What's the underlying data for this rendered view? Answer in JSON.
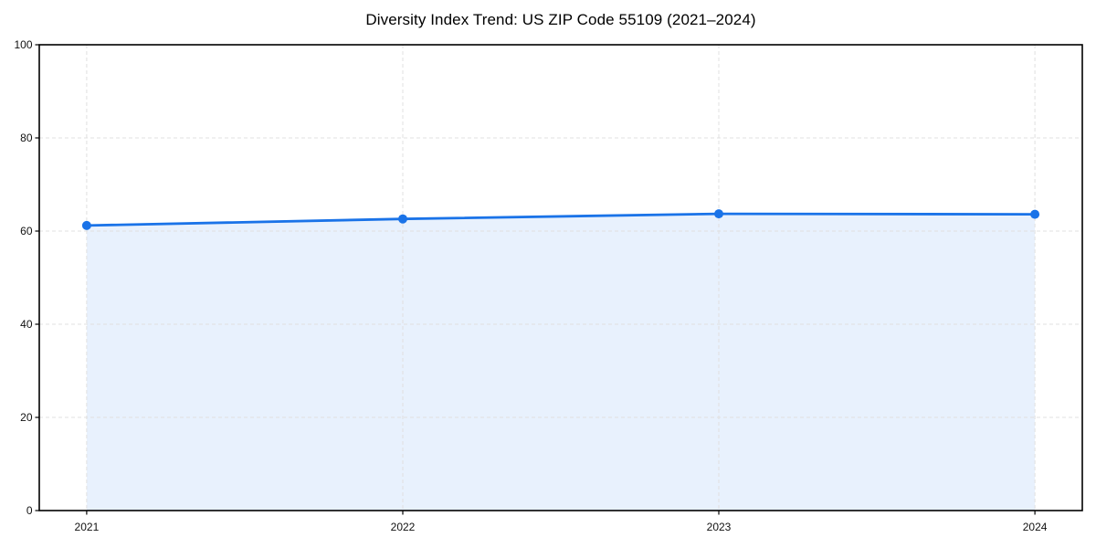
{
  "chart_data": {
    "type": "area",
    "title": "Diversity Index Trend: US ZIP Code 55109 (2021–2024)",
    "categories": [
      "2021",
      "2022",
      "2023",
      "2024"
    ],
    "values": [
      61.2,
      62.6,
      63.7,
      63.6
    ],
    "xlabel": "",
    "ylabel": "",
    "ylim": [
      0,
      100
    ],
    "yticks": [
      0,
      20,
      40,
      60,
      80,
      100
    ],
    "grid": true,
    "grid_style": "dashed",
    "legend": false,
    "line_color": "#1a73e8",
    "fill_color": "rgba(26,115,232,0.10)",
    "grid_color": "#e0e0e0",
    "axis_color": "#000000",
    "tick_label_color": "#111111",
    "marker": "circle"
  }
}
